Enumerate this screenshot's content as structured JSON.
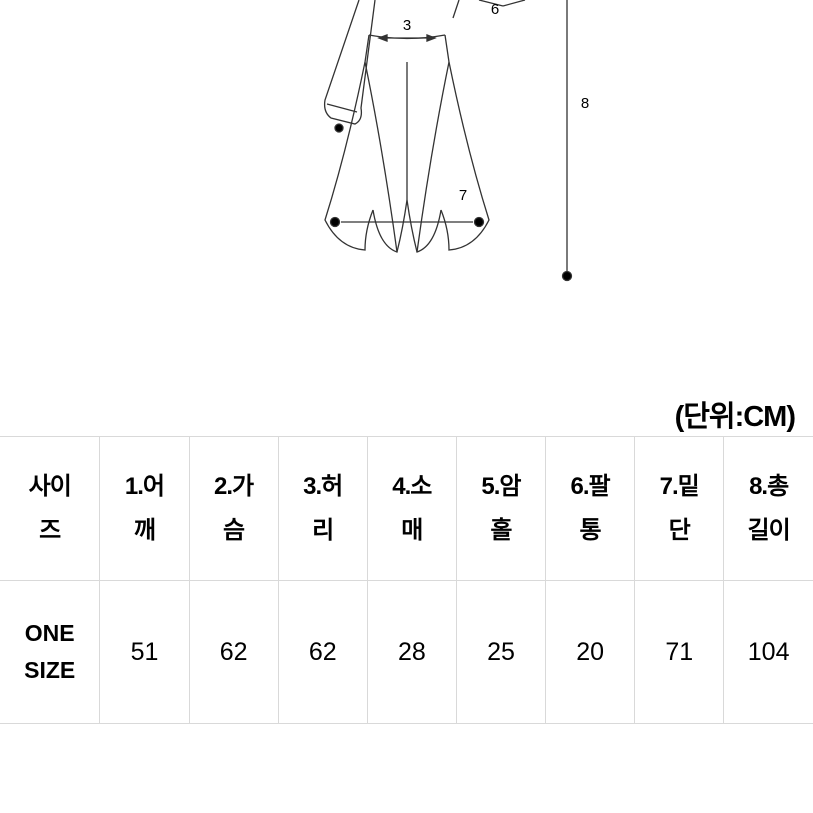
{
  "diagram": {
    "stroke": "#333333",
    "stroke_width": 1.3,
    "marker_fill": "#000000",
    "label_color": "#000000",
    "label_fontsize": 15,
    "labels": {
      "3": "3",
      "6": "6",
      "7": "7",
      "8": "8"
    }
  },
  "unit_label": "(단위:CM)",
  "table": {
    "border_color": "#d9d9d9",
    "header_bg": "#ffffff",
    "cell_bg": "#ffffff",
    "header_fontsize": 24,
    "cell_fontsize": 25,
    "text_color": "#000000",
    "columns": [
      "사이\n즈",
      "1.어\n깨",
      "2.가\n슴",
      "3.허\n리",
      "4.소\n매",
      "5.암\n홀",
      "6.팔\n통",
      "7.밑\n단",
      "8.총\n길이"
    ],
    "rows": [
      {
        "label": "ONE\nSIZE",
        "values": [
          51,
          62,
          62,
          28,
          25,
          20,
          71,
          104
        ]
      }
    ]
  }
}
